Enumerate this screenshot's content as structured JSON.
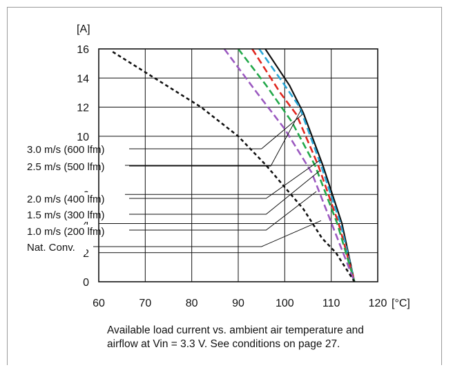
{
  "chart_data": {
    "type": "line",
    "ylabel": "[A]",
    "xunit": "[°C]",
    "xlim": [
      60,
      120
    ],
    "ylim": [
      0,
      16
    ],
    "xticks": [
      60,
      70,
      80,
      90,
      100,
      110,
      120
    ],
    "yticks": [
      0,
      2,
      4,
      6,
      8,
      10,
      12,
      14,
      16
    ],
    "grid": true,
    "series": [
      {
        "name": "3.0 m/s (600 lfm)",
        "color": "#111111",
        "style": "solid",
        "x": [
          95.8,
          101,
          104,
          108.2,
          112.3,
          115
        ],
        "y": [
          16,
          13.5,
          11.6,
          8,
          4,
          0
        ]
      },
      {
        "name": "2.5 m/s (500 lfm)",
        "color": "#2aa8d8",
        "style": "dash",
        "x": [
          94.5,
          100,
          103.2,
          107.8,
          112,
          115
        ],
        "y": [
          16,
          13.5,
          12,
          8,
          4,
          0
        ]
      },
      {
        "name": "2.0 m/s (400 lfm)",
        "color": "#e0261f",
        "style": "dash",
        "x": [
          93,
          99,
          102.5,
          107.2,
          111.6,
          115
        ],
        "y": [
          16,
          13,
          11.5,
          8,
          4,
          0
        ]
      },
      {
        "name": "1.5 m/s (300 lfm)",
        "color": "#22a84a",
        "style": "dash",
        "x": [
          90,
          96,
          101.5,
          106.5,
          111.3,
          115
        ],
        "y": [
          16,
          13.5,
          11,
          8,
          4,
          0
        ]
      },
      {
        "name": "1.0 m/s (200 lfm)",
        "color": "#9b59c0",
        "style": "dash",
        "x": [
          87,
          94,
          100,
          105.8,
          110.7,
          115
        ],
        "y": [
          16,
          13,
          10.5,
          7.5,
          3.5,
          0
        ]
      },
      {
        "name": "Nat. Conv.",
        "color": "#111111",
        "style": "dot",
        "x": [
          63,
          72,
          82,
          90,
          96,
          100,
          104,
          108,
          111,
          115
        ],
        "y": [
          15.8,
          14,
          12,
          10,
          8,
          6.5,
          5,
          3,
          2,
          0
        ]
      }
    ]
  },
  "caption": {
    "line1": "Available load current vs. ambient air temperature and",
    "line2": "airflow at Vin = 3.3 V. See conditions on page 27."
  }
}
